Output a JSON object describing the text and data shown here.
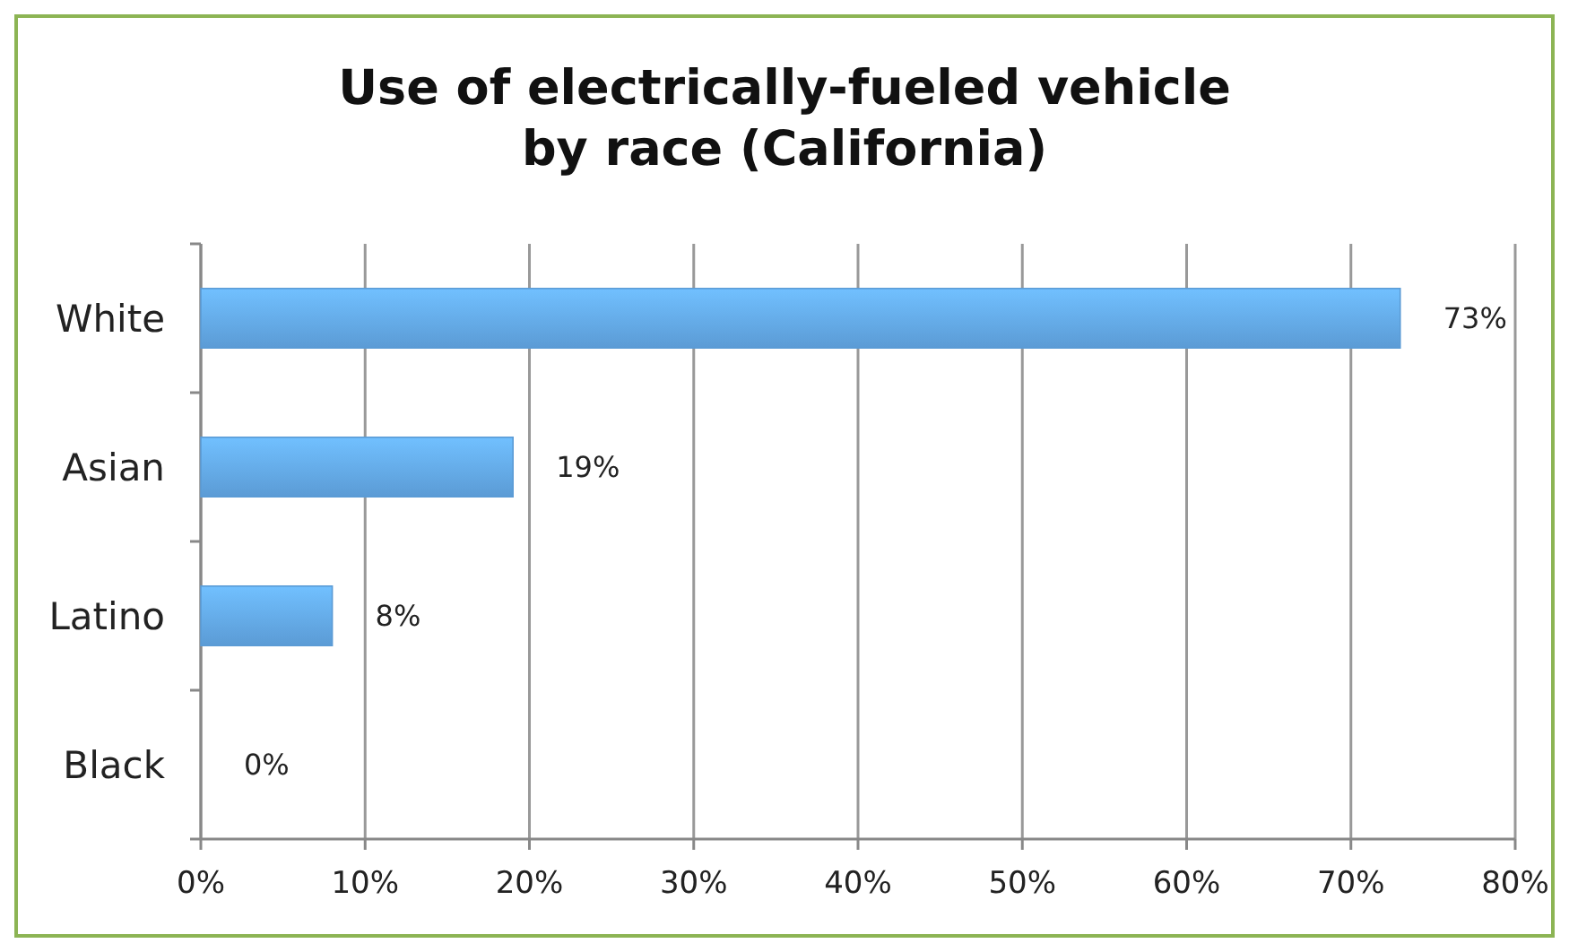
{
  "chart_data": {
    "type": "bar",
    "orientation": "horizontal",
    "title": "Use of electrically-fueled vehicle\nby race (California)",
    "categories": [
      "White",
      "Asian",
      "Latino",
      "Black"
    ],
    "values": [
      73,
      19,
      8,
      0
    ],
    "value_labels": [
      "73%",
      "19%",
      "8%",
      "0%"
    ],
    "color": "#5b9bd5",
    "xlim": [
      0,
      80
    ],
    "xticks": [
      {
        "value": 0,
        "label": "0%"
      },
      {
        "value": 10,
        "label": "10%"
      },
      {
        "value": 20,
        "label": "20%"
      },
      {
        "value": 30,
        "label": "30%"
      },
      {
        "value": 40,
        "label": "40%"
      },
      {
        "value": 50,
        "label": "50%"
      },
      {
        "value": 60,
        "label": "60%"
      },
      {
        "value": 70,
        "label": "70%"
      },
      {
        "value": 80,
        "label": "80%"
      }
    ],
    "grid": "x"
  }
}
